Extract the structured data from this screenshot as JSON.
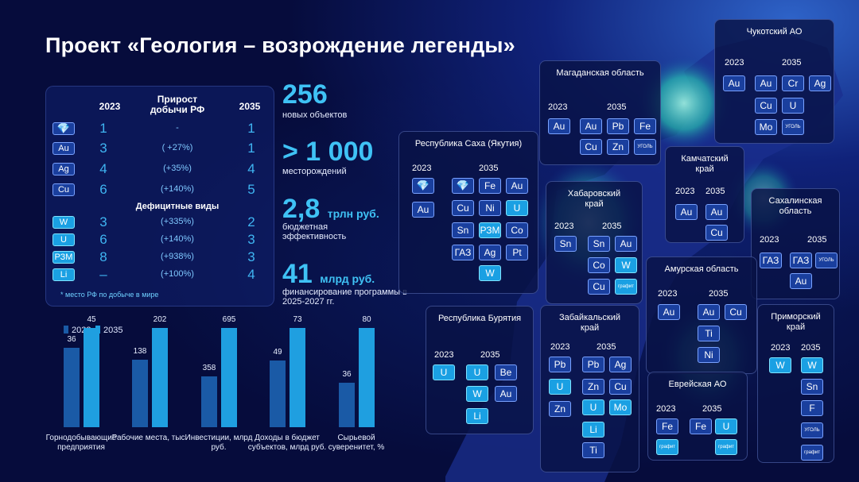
{
  "title": "Проект «Геология – возрождение легенды»",
  "table": {
    "col_2023": "2023",
    "col_growth": "Прирост добычи РФ",
    "col_2035": "2035",
    "rows": [
      {
        "chip": "💎",
        "sub": "алмазы",
        "v2023": "1",
        "growth": "-",
        "v2035": "1"
      },
      {
        "chip": "Au",
        "sub": "золото",
        "v2023": "3",
        "growth": "( +27%)",
        "v2035": "1"
      },
      {
        "chip": "Ag",
        "sub": "серебро",
        "v2023": "4",
        "growth": "(+35%)",
        "v2035": "4"
      },
      {
        "chip": "Cu",
        "sub": "медь",
        "v2023": "6",
        "growth": "(+140%)",
        "v2035": "5"
      }
    ],
    "deficit_title": "Дефицитные виды",
    "deficit_rows": [
      {
        "chip": "W",
        "sub": "вольфрам",
        "v2023": "3",
        "growth": "(+335%)",
        "v2035": "2"
      },
      {
        "chip": "U",
        "sub": "уран",
        "v2023": "6",
        "growth": "(+140%)",
        "v2035": "3"
      },
      {
        "chip": "РЗМ",
        "sub": "",
        "v2023": "8",
        "growth": "(+938%)",
        "v2035": "3"
      },
      {
        "chip": "Li",
        "sub": "литий",
        "v2023": "–",
        "growth": "(+100%)",
        "v2035": "4"
      }
    ],
    "footnote": "* место РФ по добыче в мире"
  },
  "stats": [
    {
      "value": "256",
      "unit": "",
      "caption": "новых объектов"
    },
    {
      "value": "> 1 000",
      "unit": "",
      "caption": "месторождений"
    },
    {
      "value": "2,8",
      "unit": "трлн руб.",
      "caption": "бюджетная эффективность"
    },
    {
      "value": "41",
      "unit": "млрд руб.",
      "caption": "финансирование программы в 2025-2027 гг."
    }
  ],
  "chart_data": {
    "type": "bar",
    "series": [
      {
        "name": "2023",
        "values": [
          36,
          138,
          358,
          49,
          36
        ]
      },
      {
        "name": "2035",
        "values": [
          45,
          202,
          695,
          73,
          80
        ]
      }
    ],
    "categories": [
      "Горнодобывающие предприятия",
      "Рабочие места, тыс.",
      "Инвестиции, млрд руб.",
      "Доходы в бюджет субъектов, млрд руб.",
      "Сырьевой суверенитет, %"
    ],
    "colors": [
      "#1a5aa6",
      "#1f9fe0"
    ],
    "legend": "top-left"
  },
  "regions": [
    {
      "name": "Чукотский АО",
      "y2023": "2023",
      "y2035": "2035"
    },
    {
      "name": "Магаданская область",
      "y2023": "2023",
      "y2035": "2035"
    },
    {
      "name": "Республика Саха (Якутия)",
      "y2023": "2023",
      "y2035": "2035"
    },
    {
      "name": "Хабаровский край",
      "y2023": "2023",
      "y2035": "2035"
    },
    {
      "name": "Камчатский край",
      "y2023": "2023",
      "y2035": "2035"
    },
    {
      "name": "Сахалинская область",
      "y2023": "2023",
      "y2035": "2035"
    },
    {
      "name": "Амурская область",
      "y2023": "2023",
      "y2035": "2035"
    },
    {
      "name": "Республика Бурятия",
      "y2023": "2023",
      "y2035": "2035"
    },
    {
      "name": "Забайкальский край",
      "y2023": "2023",
      "y2035": "2035"
    },
    {
      "name": "Приморский край",
      "y2023": "2023",
      "y2035": "2035"
    },
    {
      "name": "Еврейская АО",
      "y2023": "2023",
      "y2035": "2035"
    }
  ],
  "chips": {
    "coal": "УГОЛЬ",
    "gas": "ГАЗ",
    "graphite": "графит",
    "sn": "Sn",
    "au": "Au",
    "cu": "Cu",
    "fe": "Fe",
    "pb": "Pb",
    "zn": "Zn",
    "ag": "Ag",
    "w": "W",
    "u": "U",
    "mo": "Mo",
    "li": "Li",
    "ti": "Ti",
    "ni": "Ni",
    "co": "Co",
    "be": "Be",
    "cr": "Cr",
    "pt": "Pt",
    "f": "F",
    "rzm": "РЗМ"
  }
}
